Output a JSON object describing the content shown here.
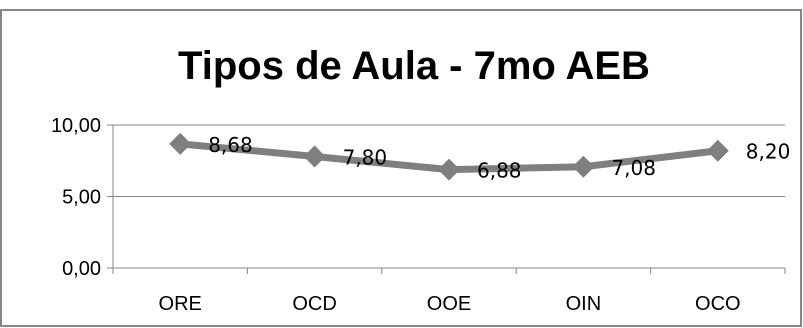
{
  "chart_data": {
    "type": "line",
    "title": "Tipos de Aula - 7mo AEB",
    "categories": [
      "ORE",
      "OCD",
      "OOE",
      "OIN",
      "OCO"
    ],
    "series": [
      {
        "values": [
          8.68,
          7.8,
          6.88,
          7.08,
          8.2
        ]
      }
    ],
    "data_labels": [
      "8,68",
      "7,80",
      "6,88",
      "7,08",
      "8,20"
    ],
    "y_ticks": [
      0,
      5,
      10
    ],
    "y_tick_labels": [
      "0,00",
      "5,00",
      "10,00"
    ],
    "ylim": [
      0,
      10
    ],
    "xlabel": "",
    "ylabel": "",
    "grid": true,
    "legend": "none",
    "colors": {
      "series": "#7f7f7f",
      "axis": "#868686",
      "grid": "#868686",
      "border": "#868686"
    }
  }
}
